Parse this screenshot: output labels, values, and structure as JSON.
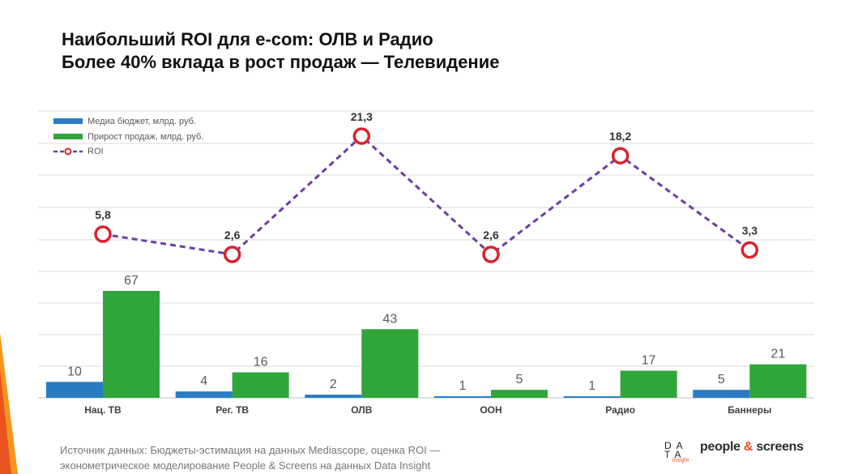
{
  "title": {
    "line1": "Наибольший ROI для e-com: ОЛВ и Радио",
    "line2": "Более 40% вклада в рост продаж — Телевидение"
  },
  "colors": {
    "budget": "#2a7cc2",
    "sales": "#2fa53a",
    "roi_line": "#6b3fa0",
    "roi_marker": "#d9232e",
    "accent_orange": "#f7941d",
    "accent_red": "#e8531f"
  },
  "chart_data": {
    "type": "bar",
    "categories": [
      "Нац. ТВ",
      "Рег. ТВ",
      "ОЛВ",
      "OOH",
      "Радио",
      "Баннеры"
    ],
    "series": [
      {
        "name": "Медиа бюджет, млрд. руб.",
        "type": "bar",
        "values": [
          10,
          4,
          2,
          1,
          1,
          5
        ],
        "labels": [
          "10",
          "4",
          "2",
          "1",
          "1",
          "5"
        ]
      },
      {
        "name": "Прирост продаж, млрд. руб.",
        "type": "bar",
        "values": [
          67,
          16,
          43,
          5,
          17,
          21
        ],
        "labels": [
          "67",
          "16",
          "43",
          "5",
          "17",
          "21"
        ]
      },
      {
        "name": "ROI",
        "type": "line",
        "values": [
          5.8,
          2.6,
          21.3,
          2.6,
          18.2,
          3.3
        ],
        "labels": [
          "5,8",
          "2,6",
          "21,3",
          "2,6",
          "18,2",
          "3,3"
        ]
      }
    ],
    "legend_position": "top-left",
    "grid": true
  },
  "source": {
    "line1": "Источник данных: Бюджеты-эстимация на данных Mediascope, оценка ROI —",
    "line2": "эконометрическое моделирование People & Screens на данных Data Insight"
  },
  "logos": {
    "data_insight_line1": "DA",
    "data_insight_line2": "TA",
    "data_insight_line3": "insight",
    "ps_part1": "people",
    "ps_amp": "&",
    "ps_part2": "screens"
  }
}
